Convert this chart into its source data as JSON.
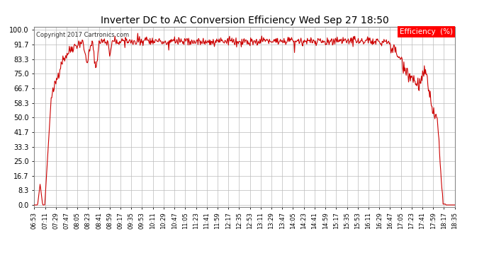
{
  "title": "Inverter DC to AC Conversion Efficiency Wed Sep 27 18:50",
  "copyright": "Copyright 2017 Cartronics.com",
  "legend_label": "Efficiency  (%)",
  "line_color": "#cc0000",
  "background_color": "#ffffff",
  "grid_color": "#bbbbbb",
  "yticks": [
    0.0,
    8.3,
    16.7,
    25.0,
    33.3,
    41.7,
    50.0,
    58.3,
    66.7,
    75.0,
    83.3,
    91.7,
    100.0
  ],
  "ylim": [
    0,
    100
  ],
  "xtick_labels": [
    "06:53",
    "07:11",
    "07:29",
    "07:47",
    "08:05",
    "08:23",
    "08:41",
    "08:59",
    "09:17",
    "09:35",
    "09:53",
    "10:11",
    "10:29",
    "10:47",
    "11:05",
    "11:23",
    "11:41",
    "11:59",
    "12:17",
    "12:35",
    "12:53",
    "13:11",
    "13:29",
    "13:47",
    "14:05",
    "14:23",
    "14:41",
    "14:59",
    "15:17",
    "15:35",
    "15:53",
    "16:11",
    "16:29",
    "16:47",
    "17:05",
    "17:23",
    "17:41",
    "17:59",
    "18:17",
    "18:35"
  ],
  "figsize": [
    6.9,
    3.75
  ],
  "dpi": 100
}
